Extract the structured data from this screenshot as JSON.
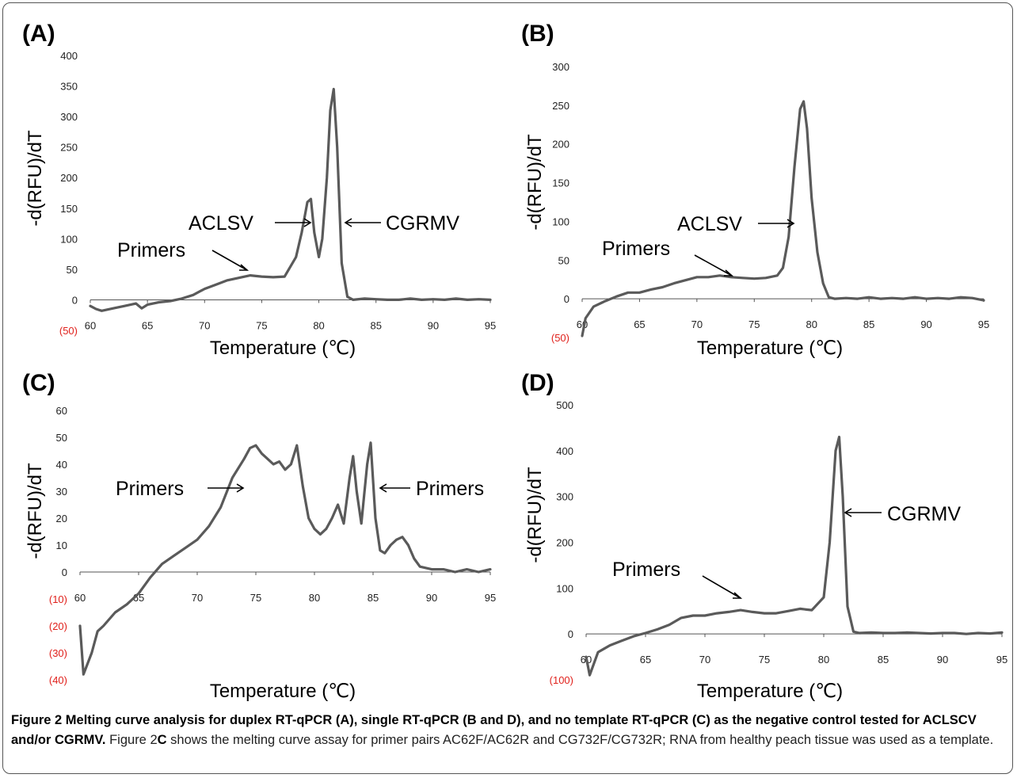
{
  "caption": {
    "label": "Figure 2",
    "title": "Melting curve analysis for duplex RT-qPCR (A), single RT-qPCR (B and D), and no template RT-qPCR (C) as the negative control tested for ACLSCV and/or CGRMV.",
    "text_before": "Figure 2",
    "text_bold": "C",
    "text_after": "shows the melting curve assay for primer pairs AC62F/AC62R and CG732F/CG732R; RNA from healthy peach tissue was used as a template."
  },
  "chart_data": [
    {
      "panel": "(A)",
      "type": "line",
      "xlabel": "Temperature (℃)",
      "ylabel": "-d(RFU)/dT",
      "xlim": [
        60,
        95
      ],
      "ylim": [
        -50,
        400
      ],
      "xticks": [
        "60",
        "65",
        "70",
        "75",
        "80",
        "85",
        "90",
        "95"
      ],
      "yticks": [
        "0",
        "50",
        "100",
        "150",
        "200",
        "250",
        "300",
        "350",
        "400"
      ],
      "yticks_negative": [
        "(50)"
      ],
      "grid": false,
      "x": [
        60,
        60.5,
        61,
        62,
        63,
        64,
        64.5,
        65,
        66,
        67,
        68,
        69,
        70,
        71,
        72,
        73,
        74,
        75,
        76,
        77,
        78,
        78.5,
        79,
        79.3,
        79.6,
        80,
        80.3,
        80.7,
        81,
        81.3,
        81.6,
        82,
        82.5,
        83,
        84,
        85,
        86,
        87,
        88,
        89,
        90,
        91,
        92,
        93,
        94,
        95
      ],
      "y": [
        -10,
        -15,
        -18,
        -14,
        -10,
        -6,
        -14,
        -8,
        -4,
        -2,
        2,
        8,
        18,
        25,
        32,
        36,
        40,
        38,
        37,
        38,
        70,
        110,
        160,
        165,
        110,
        70,
        100,
        200,
        310,
        345,
        250,
        60,
        5,
        0,
        2,
        1,
        0,
        0,
        2,
        0,
        1,
        0,
        2,
        0,
        1,
        0
      ],
      "annotations": [
        "Primers",
        "ACLSV",
        "CGRMV"
      ]
    },
    {
      "panel": "(B)",
      "type": "line",
      "xlabel": "Temperature (℃)",
      "ylabel": "-d(RFU)/dT",
      "xlim": [
        60,
        95
      ],
      "ylim": [
        -50,
        300
      ],
      "xticks": [
        "60",
        "65",
        "70",
        "75",
        "80",
        "85",
        "90",
        "95"
      ],
      "yticks": [
        "0",
        "50",
        "100",
        "150",
        "200",
        "250",
        "300"
      ],
      "yticks_negative": [
        "(50)"
      ],
      "grid": false,
      "x": [
        60,
        60.3,
        61,
        62,
        63,
        64,
        65,
        66,
        67,
        68,
        69,
        70,
        71,
        72,
        73,
        74,
        75,
        76,
        77,
        77.5,
        78,
        78.5,
        79,
        79.3,
        79.6,
        80,
        80.5,
        81,
        81.5,
        82,
        83,
        84,
        85,
        86,
        87,
        88,
        89,
        90,
        91,
        92,
        93,
        94,
        95
      ],
      "y": [
        -48,
        -25,
        -10,
        -3,
        3,
        8,
        8,
        12,
        15,
        20,
        24,
        28,
        28,
        30,
        28,
        27,
        26,
        27,
        30,
        40,
        80,
        170,
        245,
        255,
        220,
        130,
        60,
        20,
        2,
        0,
        1,
        0,
        2,
        0,
        1,
        0,
        2,
        0,
        1,
        0,
        2,
        1,
        -2
      ],
      "annotations": [
        "Primers",
        "ACLSV"
      ]
    },
    {
      "panel": "(C)",
      "type": "line",
      "xlabel": "Temperature (℃)",
      "ylabel": "-d(RFU)/dT",
      "xlim": [
        60,
        95
      ],
      "ylim": [
        -40,
        60
      ],
      "xticks": [
        "60",
        "65",
        "70",
        "75",
        "80",
        "85",
        "90",
        "95"
      ],
      "yticks": [
        "0",
        "10",
        "20",
        "30",
        "40",
        "50",
        "60"
      ],
      "yticks_negative": [
        "(10)",
        "(20)",
        "(30)",
        "(40)"
      ],
      "grid": false,
      "x": [
        60,
        60.3,
        61,
        61.5,
        62,
        63,
        64,
        65,
        66,
        67,
        68,
        69,
        70,
        71,
        72,
        73,
        74,
        74.5,
        75,
        75.5,
        76,
        76.5,
        77,
        77.5,
        78,
        78.5,
        79,
        79.5,
        80,
        80.5,
        81,
        81.5,
        82,
        82.5,
        83,
        83.3,
        83.6,
        84,
        84.5,
        84.8,
        85.2,
        85.6,
        86,
        86.5,
        87,
        87.5,
        88,
        88.5,
        89,
        90,
        91,
        92,
        93,
        94,
        95
      ],
      "y": [
        -20,
        -38,
        -30,
        -22,
        -20,
        -15,
        -12,
        -8,
        -2,
        3,
        6,
        9,
        12,
        17,
        24,
        35,
        42,
        46,
        47,
        44,
        42,
        40,
        41,
        38,
        40,
        47,
        32,
        20,
        16,
        14,
        16,
        20,
        25,
        18,
        35,
        43,
        30,
        18,
        40,
        48,
        20,
        8,
        7,
        10,
        12,
        13,
        10,
        5,
        2,
        1,
        1,
        0,
        1,
        0,
        1
      ],
      "annotations": [
        "Primers",
        "Primers"
      ]
    },
    {
      "panel": "(D)",
      "type": "line",
      "xlabel": "Temperature (℃)",
      "ylabel": "-d(RFU)/dT",
      "xlim": [
        60,
        95
      ],
      "ylim": [
        -100,
        500
      ],
      "xticks": [
        "60",
        "65",
        "70",
        "75",
        "80",
        "85",
        "90",
        "95"
      ],
      "yticks": [
        "0",
        "100",
        "200",
        "300",
        "400",
        "500"
      ],
      "yticks_negative": [
        "(100)"
      ],
      "grid": false,
      "x": [
        60,
        60.3,
        61,
        62,
        63,
        64,
        65,
        66,
        67,
        68,
        69,
        70,
        71,
        72,
        73,
        74,
        75,
        76,
        77,
        78,
        79,
        80,
        80.5,
        81,
        81.3,
        81.6,
        82,
        82.5,
        83,
        84,
        85,
        86,
        87,
        88,
        89,
        90,
        91,
        92,
        93,
        94,
        95
      ],
      "y": [
        -50,
        -90,
        -40,
        -25,
        -15,
        -5,
        2,
        10,
        20,
        35,
        40,
        40,
        45,
        48,
        52,
        48,
        45,
        45,
        50,
        55,
        52,
        80,
        200,
        400,
        430,
        300,
        60,
        5,
        2,
        3,
        2,
        2,
        3,
        2,
        1,
        2,
        2,
        0,
        2,
        1,
        3
      ],
      "annotations": [
        "Primers",
        "CGRMV"
      ]
    }
  ]
}
